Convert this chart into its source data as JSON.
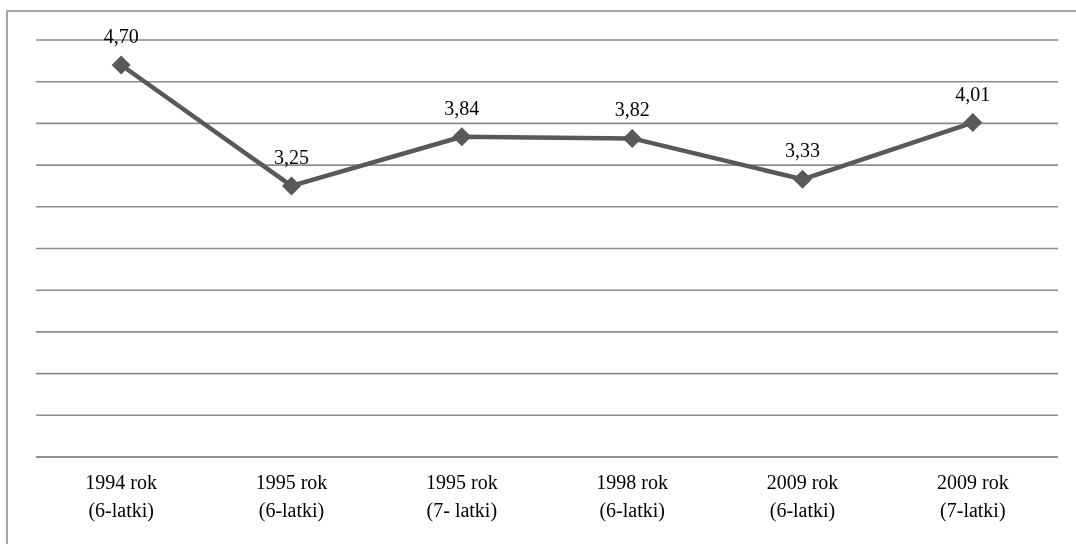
{
  "chart_data": {
    "type": "line",
    "categories": [
      "1994 rok\n(6-latki)",
      "1995 rok\n(6-latki)",
      "1995 rok\n(7- latki)",
      "1998 rok\n(6-latki)",
      "2009 rok\n(6-latki)",
      "2009 rok\n(7-latki)"
    ],
    "values": [
      4.7,
      3.25,
      3.84,
      3.82,
      3.33,
      4.01
    ],
    "value_labels": [
      "4,70",
      "3,25",
      "3,84",
      "3,82",
      "3,33",
      "4,01"
    ],
    "color": "#595959",
    "marker": "diamond",
    "line_style": "solid",
    "ylim": [
      0,
      5
    ],
    "yticks": [
      {
        "value": 0,
        "label": null
      },
      {
        "value": 0.5,
        "label": null
      },
      {
        "value": 1,
        "label": null
      },
      {
        "value": 1.5,
        "label": null
      },
      {
        "value": 2,
        "label": null
      },
      {
        "value": 2.5,
        "label": null
      },
      {
        "value": 3,
        "label": null
      },
      {
        "value": 3.5,
        "label": null
      },
      {
        "value": 4,
        "label": null
      },
      {
        "value": 4.5,
        "label": null
      },
      {
        "value": 5,
        "label": null
      }
    ],
    "grid": "y",
    "tick_labels": "x"
  }
}
